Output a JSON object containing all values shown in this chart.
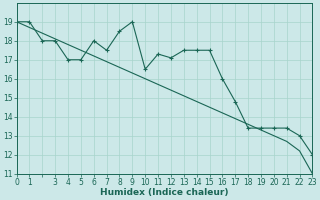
{
  "xlabel": "Humidex (Indice chaleur)",
  "bg_color": "#cce8e8",
  "grid_color": "#a8d4cc",
  "line_color": "#1a6655",
  "hours": [
    0,
    1,
    2,
    3,
    4,
    5,
    6,
    7,
    8,
    9,
    10,
    11,
    12,
    13,
    14,
    15,
    16,
    17,
    18,
    19,
    20,
    21,
    22,
    23
  ],
  "data_line": [
    19.0,
    19.0,
    18.0,
    18.0,
    17.0,
    17.0,
    18.0,
    17.5,
    18.5,
    19.0,
    16.5,
    17.3,
    17.1,
    17.5,
    17.5,
    17.5,
    16.0,
    14.8,
    13.4,
    13.4,
    13.4,
    13.4,
    13.0,
    12.0
  ],
  "trend_line": [
    19.0,
    18.7,
    18.4,
    18.1,
    17.8,
    17.5,
    17.2,
    16.9,
    16.6,
    16.3,
    16.0,
    15.7,
    15.4,
    15.1,
    14.8,
    14.5,
    14.2,
    13.9,
    13.6,
    13.3,
    13.0,
    12.7,
    12.2,
    11.0
  ],
  "ylim": [
    11,
    20
  ],
  "xlim": [
    0,
    23
  ],
  "yticks": [
    11,
    12,
    13,
    14,
    15,
    16,
    17,
    18,
    19
  ],
  "xtick_labels": [
    "0",
    "1",
    "",
    "3",
    "4",
    "5",
    "6",
    "7",
    "8",
    "9",
    "10",
    "11",
    "12",
    "13",
    "14",
    "15",
    "16",
    "17",
    "18",
    "19",
    "20",
    "21",
    "22",
    "23"
  ],
  "linewidth": 0.8,
  "markersize": 2.5,
  "tick_fontsize": 5.5,
  "label_fontsize": 6.5
}
